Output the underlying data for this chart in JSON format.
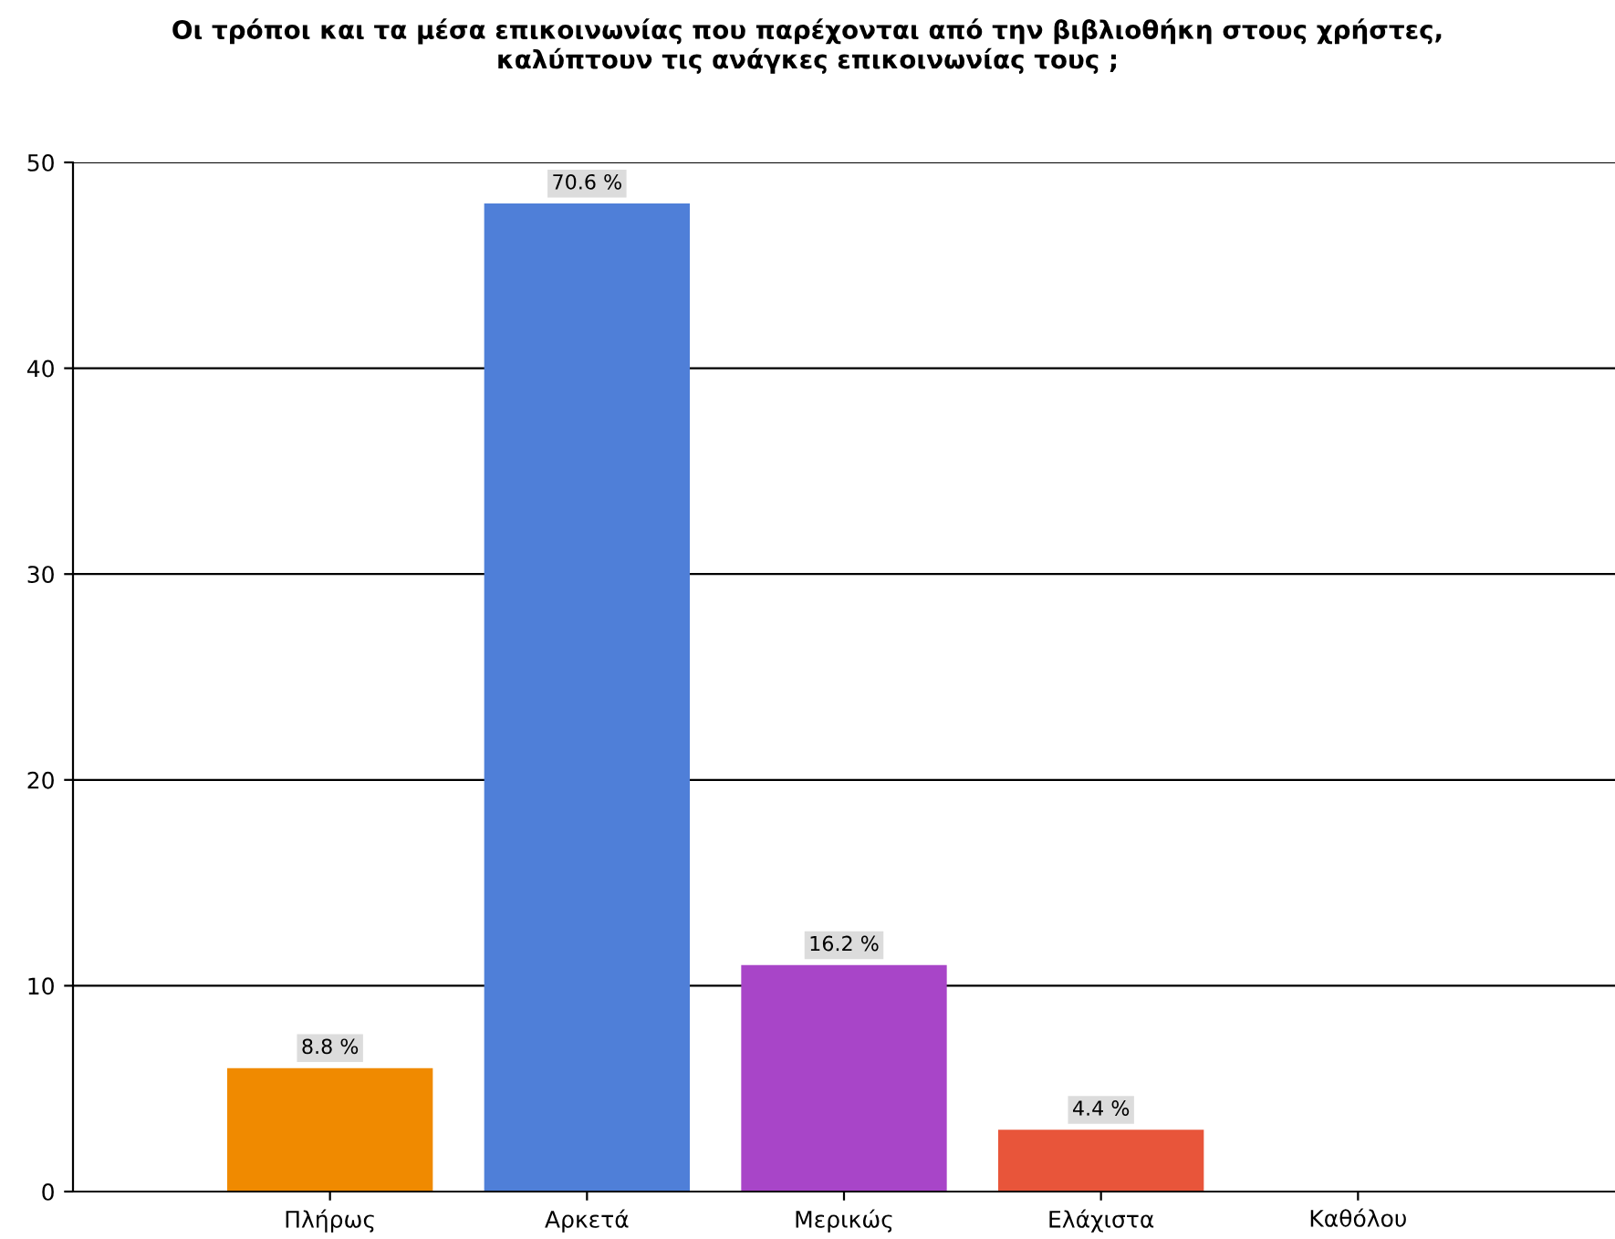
{
  "chart_data": {
    "type": "bar",
    "title": "Οι τρόποι και τα μέσα επικοινωνίας που παρέχονται από την βιβλιοθήκη στους χρήστες,\nκαλύπτουν τις ανάγκες επικοινωνίας τους ;",
    "categories": [
      "Πλήρως",
      "Αρκετά",
      "Μερικώς",
      "Ελάχιστα",
      "Καθόλου"
    ],
    "values": [
      6,
      48,
      11,
      3,
      0
    ],
    "annotations": [
      {
        "text": "8.8 %",
        "x": "Πλήρως",
        "y": 6
      },
      {
        "text": "70.6 %",
        "x": "Αρκετά",
        "y": 48
      },
      {
        "text": "16.2 %",
        "x": "Μερικώς",
        "y": 11
      },
      {
        "text": "4.4 %",
        "x": "Ελάχιστα",
        "y": 3
      }
    ],
    "colors": [
      "#f08a00",
      "#4f7fd8",
      "#a845c8",
      "#e8553a",
      "#888888"
    ],
    "ylim": [
      0,
      50
    ],
    "yticks": [
      0,
      10,
      20,
      30,
      40,
      50
    ],
    "grid": "y"
  }
}
